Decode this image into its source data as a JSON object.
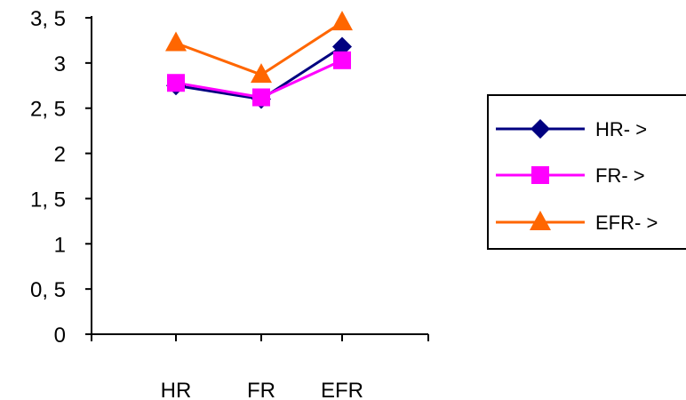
{
  "chart_data": {
    "type": "line",
    "categories": [
      "HR",
      "FR",
      "EFR"
    ],
    "y_ticks": [
      "0",
      "0, 5",
      "1",
      "1, 5",
      "2",
      "2, 5",
      "3",
      "3, 5"
    ],
    "ylim": [
      0,
      3.5
    ],
    "grid": false,
    "legend_placement": "right",
    "series": [
      {
        "name": "HR- >",
        "values": [
          2.75,
          2.6,
          3.18
        ],
        "color": "#000080",
        "marker": "diamond"
      },
      {
        "name": "FR- >",
        "values": [
          2.78,
          2.62,
          3.03
        ],
        "color": "#FF00FF",
        "marker": "square"
      },
      {
        "name": "EFR- >",
        "values": [
          3.22,
          2.87,
          3.45
        ],
        "color": "#FF6600",
        "marker": "triangle"
      }
    ]
  }
}
